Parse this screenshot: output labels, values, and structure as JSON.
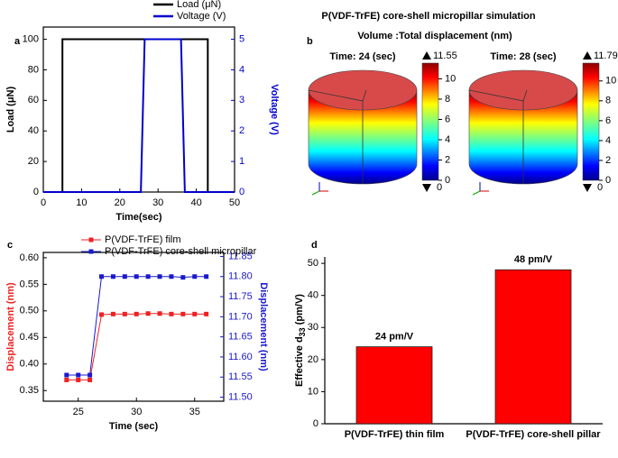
{
  "chart_data": [
    {
      "type": "line",
      "panel": "a",
      "xlabel": "Time(sec)",
      "ylabel": "Load (μN)",
      "y2label": "Voltage (V)",
      "xlim": [
        0,
        50
      ],
      "xticks": [
        0,
        10,
        20,
        30,
        40,
        50
      ],
      "ylim": [
        0,
        108
      ],
      "yticks": [
        0,
        20,
        40,
        60,
        80,
        100
      ],
      "y2lim": [
        0,
        5.4
      ],
      "y2ticks": [
        0,
        1,
        2,
        3,
        4,
        5
      ],
      "legend": "upper right",
      "markers": false,
      "series": [
        {
          "name": "Load (μN)",
          "color": "#000000",
          "x": [
            0,
            5,
            5,
            43,
            43
          ],
          "values": [
            0,
            0,
            100,
            100,
            0
          ]
        },
        {
          "name": "Voltage (V)",
          "color": "#0000cc",
          "axis": "y2",
          "x": [
            0,
            25.5,
            26.5,
            36,
            37,
            50
          ],
          "values": [
            0,
            0,
            5,
            5,
            0,
            0
          ]
        }
      ]
    },
    {
      "type": "colormap",
      "panel": "b",
      "title": "P(VDF-TrFE) core-shell micropillar simulation",
      "subtitle": "Volume :Total displacement (nm)",
      "cticks": [
        0,
        2,
        4,
        6,
        8,
        10
      ],
      "panels": [
        {
          "label": "Time: 24 (sec)",
          "max": 11.55,
          "min": 0
        },
        {
          "label": "Time: 28 (sec)",
          "max": 11.795,
          "min": 0
        }
      ]
    },
    {
      "type": "line",
      "panel": "c",
      "xlabel": "Time (sec)",
      "ylabel": "Displacement (nm)",
      "y2label": "Displacement (nm)",
      "x": [
        24,
        25,
        26,
        27,
        28,
        29,
        30,
        31,
        32,
        33,
        34,
        35,
        36
      ],
      "xlim": [
        22,
        37.5
      ],
      "xticks": [
        25,
        30,
        35
      ],
      "ylim": [
        0.33,
        0.61
      ],
      "yticks": [
        0.35,
        {
          "value": 0.4,
          "label": "0.40"
        },
        0.45,
        {
          "value": 0.5,
          "label": "0.50"
        },
        0.55,
        {
          "value": 0.6,
          "label": "0.60"
        }
      ],
      "y2lim": [
        11.49,
        11.86
      ],
      "y2ticks": [
        {
          "value": 11.5,
          "label": "11.50"
        },
        11.55,
        {
          "value": 11.6,
          "label": "11.60"
        },
        11.65,
        {
          "value": 11.7,
          "label": "11.70"
        },
        11.75,
        {
          "value": 11.8,
          "label": "11.80"
        },
        11.85
      ],
      "legend": "upper left",
      "markers": true,
      "series": [
        {
          "name": "P(VDF-TrFE) film",
          "color": "#ee2222",
          "values": [
            0.37,
            0.37,
            0.37,
            0.493,
            0.494,
            0.494,
            0.494,
            0.495,
            0.495,
            0.494,
            0.494,
            0.494,
            0.494
          ]
        },
        {
          "name": "P(VDF-TrFE) core-shell micropillar",
          "color": "#1a1acc",
          "axis": "y2",
          "values": [
            11.555,
            11.555,
            11.555,
            11.8,
            11.8,
            11.8,
            11.8,
            11.8,
            11.8,
            11.8,
            11.798,
            11.8,
            11.8
          ]
        }
      ]
    },
    {
      "type": "bar",
      "panel": "d",
      "ylabel": "Effective d",
      "ylabel_subscript": "33",
      "ylabel_unit": " (pm/V)",
      "categories": [
        "P(VDF-TrFE) thin film",
        "P(VDF-TrFE) core-shell pillar"
      ],
      "values": [
        24,
        48
      ],
      "value_labels": [
        "24 pm/V",
        "48 pm/V"
      ],
      "color": "#ff0000",
      "ylim": [
        0,
        52
      ],
      "yticks": [
        0,
        10,
        20,
        30,
        40,
        50
      ]
    }
  ]
}
